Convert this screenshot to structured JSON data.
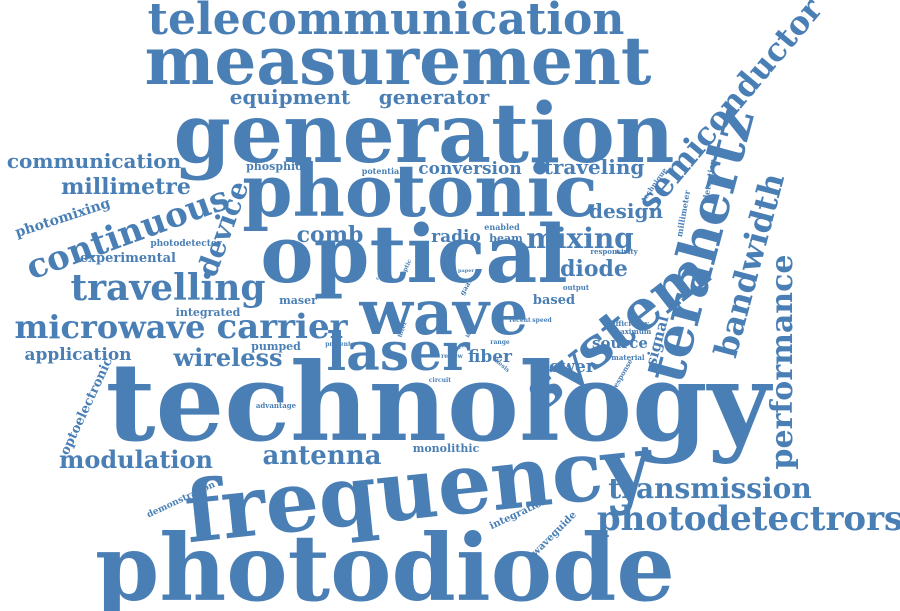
{
  "colors": {
    "word": "#4a7fb5",
    "background": "#ffffff"
  },
  "words": [
    {
      "text": "technology",
      "weight": 100
    },
    {
      "text": "photodiode",
      "weight": 88
    },
    {
      "text": "frequency",
      "weight": 82
    },
    {
      "text": "generation",
      "weight": 78
    },
    {
      "text": "optical",
      "weight": 74
    },
    {
      "text": "photonic",
      "weight": 70
    },
    {
      "text": "measurement",
      "weight": 66
    },
    {
      "text": "wave",
      "weight": 64
    },
    {
      "text": "system",
      "weight": 60
    },
    {
      "text": "terahertz",
      "weight": 58
    },
    {
      "text": "laser",
      "weight": 56
    },
    {
      "text": "telecommunication",
      "weight": 50
    },
    {
      "text": "semiconductor",
      "weight": 44
    },
    {
      "text": "photodetectrors",
      "weight": 42
    },
    {
      "text": "bandwidth",
      "weight": 40
    },
    {
      "text": "performance",
      "weight": 38
    },
    {
      "text": "continuous",
      "weight": 38
    },
    {
      "text": "travelling",
      "weight": 38
    },
    {
      "text": "carrier",
      "weight": 36
    },
    {
      "text": "microwave",
      "weight": 36
    },
    {
      "text": "transmission",
      "weight": 32
    },
    {
      "text": "device",
      "weight": 30
    },
    {
      "text": "mixing",
      "weight": 30
    },
    {
      "text": "antenna",
      "weight": 28
    },
    {
      "text": "modulation",
      "weight": 28
    },
    {
      "text": "wireless",
      "weight": 26
    },
    {
      "text": "comb",
      "weight": 26
    },
    {
      "text": "diode",
      "weight": 24
    },
    {
      "text": "millimetre",
      "weight": 22
    },
    {
      "text": "communication",
      "weight": 22
    },
    {
      "text": "equipment",
      "weight": 20
    },
    {
      "text": "generator",
      "weight": 20
    },
    {
      "text": "traveling",
      "weight": 20
    },
    {
      "text": "design",
      "weight": 20
    },
    {
      "text": "conversion",
      "weight": 18
    },
    {
      "text": "application",
      "weight": 18
    },
    {
      "text": "radio",
      "weight": 18
    },
    {
      "text": "fiber",
      "weight": 18
    },
    {
      "text": "power",
      "weight": 18
    },
    {
      "text": "source",
      "weight": 16
    },
    {
      "text": "signal",
      "weight": 16
    },
    {
      "text": "photomixing",
      "weight": 16
    },
    {
      "text": "experimental",
      "weight": 14
    },
    {
      "text": "optoelectronic",
      "weight": 14
    },
    {
      "text": "based",
      "weight": 14
    },
    {
      "text": "beam",
      "weight": 12
    },
    {
      "text": "integrated",
      "weight": 12
    },
    {
      "text": "maser",
      "weight": 12
    },
    {
      "text": "pumped",
      "weight": 12
    },
    {
      "text": "monolithic",
      "weight": 12
    },
    {
      "text": "phosphide",
      "weight": 12
    },
    {
      "text": "photodetector",
      "weight": 10
    },
    {
      "text": "integration",
      "weight": 10
    },
    {
      "text": "waveguide",
      "weight": 10
    },
    {
      "text": "demonstration",
      "weight": 10
    },
    {
      "text": "enabled",
      "weight": 9
    },
    {
      "text": "potential",
      "weight": 9
    },
    {
      "text": "millimeter",
      "weight": 9
    },
    {
      "text": "detection",
      "weight": 9
    },
    {
      "text": "technique",
      "weight": 8
    },
    {
      "text": "responsivity",
      "weight": 8
    },
    {
      "text": "efficiency",
      "weight": 8
    },
    {
      "text": "maximum",
      "weight": 8
    },
    {
      "text": "material",
      "weight": 8
    },
    {
      "text": "response",
      "weight": 8
    },
    {
      "text": "output",
      "weight": 8
    },
    {
      "text": "gaas",
      "weight": 8
    },
    {
      "text": "range",
      "weight": 7
    },
    {
      "text": "recent",
      "weight": 7
    },
    {
      "text": "speed",
      "weight": 7
    },
    {
      "text": "filter",
      "weight": 7
    },
    {
      "text": "optic",
      "weight": 7
    },
    {
      "text": "circuit",
      "weight": 7
    },
    {
      "text": "review",
      "weight": 7
    },
    {
      "text": "thesis",
      "weight": 7
    },
    {
      "text": "advantage",
      "weight": 7
    },
    {
      "text": "present",
      "weight": 7
    },
    {
      "text": "compact",
      "weight": 6
    },
    {
      "text": "band",
      "weight": 6
    },
    {
      "text": "paper",
      "weight": 6
    },
    {
      "text": "society",
      "weight": 6
    }
  ]
}
